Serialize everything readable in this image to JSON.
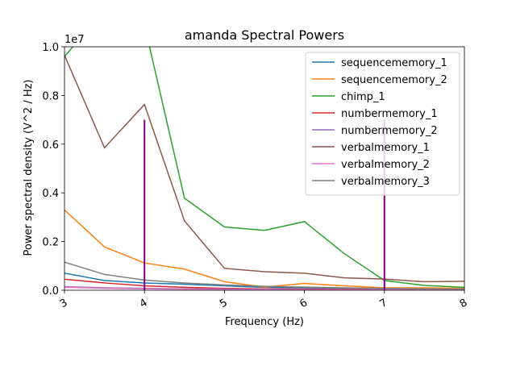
{
  "chart_data": {
    "type": "line",
    "title": "amanda Spectral Powers",
    "xlabel": "Frequency (Hz)",
    "ylabel": "Power spectral density (V^2 / Hz)",
    "y_offset_label": "1e7",
    "xlim": [
      3,
      8
    ],
    "ylim": [
      0,
      1.0
    ],
    "y_scale_factor": 10000000,
    "x_ticks": [
      3,
      4,
      5,
      6,
      7,
      8
    ],
    "y_ticks": [
      0.0,
      0.2,
      0.4,
      0.6,
      0.8,
      1.0
    ],
    "x_tick_labels": [
      "3",
      "4",
      "5",
      "6",
      "7",
      "8"
    ],
    "y_tick_labels": [
      "0.0",
      "0.2",
      "0.4",
      "0.6",
      "0.8",
      "1.0"
    ],
    "grid": false,
    "legend_position": "top-right",
    "x": [
      3.0,
      3.5,
      4.0,
      4.5,
      5.0,
      5.5,
      6.0,
      6.5,
      7.0,
      7.5,
      8.0
    ],
    "series": [
      {
        "name": "sequencememory_1",
        "color": "#1f77b4",
        "values": [
          0.07,
          0.04,
          0.03,
          0.025,
          0.018,
          0.012,
          0.01,
          0.008,
          0.006,
          0.005,
          0.004
        ]
      },
      {
        "name": "sequencememory_2",
        "color": "#ff7f0e",
        "values": [
          0.33,
          0.178,
          0.112,
          0.087,
          0.035,
          0.013,
          0.028,
          0.018,
          0.01,
          0.01,
          0.008
        ]
      },
      {
        "name": "chimp_1",
        "color": "#2ca02c",
        "values": [
          0.96,
          1.15,
          1.09,
          0.378,
          0.26,
          0.246,
          0.282,
          0.15,
          0.04,
          0.02,
          0.012
        ]
      },
      {
        "name": "numbermemory_1",
        "color": "#d62728",
        "values": [
          0.045,
          0.03,
          0.018,
          0.012,
          0.008,
          0.006,
          0.005,
          0.004,
          0.003,
          0.003,
          0.002
        ]
      },
      {
        "name": "numbermemory_2",
        "color": "#9467bd",
        "values": [
          0.015,
          0.01,
          0.008,
          0.006,
          0.005,
          0.004,
          0.003,
          0.003,
          0.002,
          0.002,
          0.002
        ]
      },
      {
        "name": "verbalmemory_1",
        "color": "#8c564b",
        "values": [
          0.965,
          0.585,
          0.763,
          0.285,
          0.09,
          0.076,
          0.07,
          0.051,
          0.046,
          0.035,
          0.037
        ]
      },
      {
        "name": "verbalmemory_2",
        "color": "#e377c2",
        "values": [
          0.012,
          0.008,
          0.006,
          0.004,
          0.003,
          0.003,
          0.002,
          0.002,
          0.002,
          0.002,
          0.002
        ]
      },
      {
        "name": "verbalmemory_3",
        "color": "#7f7f7f",
        "values": [
          0.115,
          0.065,
          0.042,
          0.03,
          0.022,
          0.016,
          0.013,
          0.01,
          0.008,
          0.006,
          0.005
        ]
      }
    ],
    "annotations": [
      {
        "type": "vline",
        "x": 4.0,
        "y_top": 0.7,
        "color": "#800080"
      },
      {
        "type": "vline",
        "x": 7.0,
        "y_top": 0.7,
        "color": "#800080"
      }
    ]
  }
}
